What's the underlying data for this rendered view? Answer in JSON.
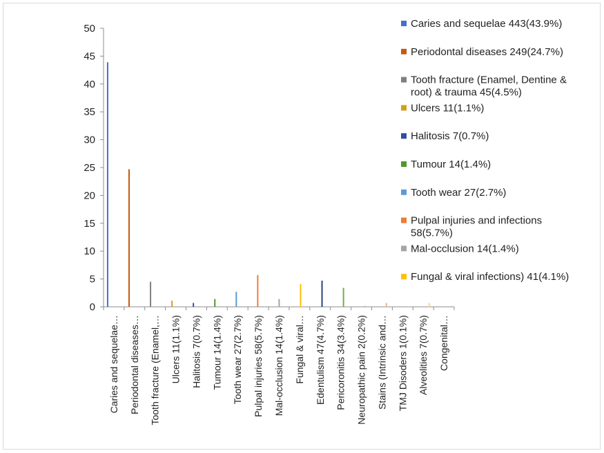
{
  "chart_data": {
    "type": "bar",
    "title": "",
    "xlabel": "",
    "ylabel": "",
    "ylim": [
      0,
      50
    ],
    "yticks": [
      "0",
      "5",
      "10",
      "15",
      "20",
      "25",
      "30",
      "35",
      "40",
      "45",
      "50"
    ],
    "legend_position": "right",
    "grid": false,
    "categories": [
      "Caries and sequelae…",
      "Periodontal diseases…",
      "Tooth fracture (Enamel,…",
      "Ulcers 11(1.1%)",
      "Halitosis 7(0.7%)",
      "Tumour 14(1.4%)",
      "Tooth wear 27(2.7%)",
      "Pulpal injuries 58(5.7%)",
      "Mal-occlusion 14(1.4%)",
      "Fungal & viral…",
      "Edentulism 47(4.7%)",
      "Pericoronitis 34(3.4%)",
      "Neuropathic pain 2(0.2%)",
      "Stains (Intrinsic and…",
      "TMJ Disoders 1(0.1%)",
      "Alveolities 7(0.7%)",
      "Congenital…"
    ],
    "series": [
      {
        "name": "Caries and sequelae 443(43.9%)",
        "color": "#4472c4",
        "category_index": 0,
        "value": 43.9
      },
      {
        "name": "Periodontal diseases 249(24.7%)",
        "color": "#c55a11",
        "category_index": 1,
        "value": 24.7
      },
      {
        "name": "Tooth fracture (Enamel, Dentine & root) & trauma 45(4.5%)",
        "color": "#7f7f7f",
        "category_index": 2,
        "value": 4.5
      },
      {
        "name": "Ulcers 11(1.1%)",
        "color": "#d4a017",
        "category_index": 3,
        "value": 1.1
      },
      {
        "name": "Halitosis 7(0.7%)",
        "color": "#2f4f9f",
        "category_index": 4,
        "value": 0.7
      },
      {
        "name": "Tumour 14(1.4%)",
        "color": "#4c9a2a",
        "category_index": 5,
        "value": 1.4
      },
      {
        "name": "Tooth wear 27(2.7%)",
        "color": "#5b9bd5",
        "category_index": 6,
        "value": 2.7
      },
      {
        "name": "Pulpal injuries and infections 58(5.7%)",
        "color": "#ed7d31",
        "category_index": 7,
        "value": 5.7
      },
      {
        "name": "Mal-occlusion 14(1.4%)",
        "color": "#a5a5a5",
        "category_index": 8,
        "value": 1.4
      },
      {
        "name": "Fungal & viral infections) 41(4.1%)",
        "color": "#ffc000",
        "category_index": 9,
        "value": 4.1
      },
      {
        "name": "",
        "color": "#264478",
        "category_index": 10,
        "value": 4.7
      },
      {
        "name": "",
        "color": "#70ad47",
        "category_index": 11,
        "value": 3.4
      },
      {
        "name": "",
        "color": "#9dc3e6",
        "category_index": 12,
        "value": 0.2
      },
      {
        "name": "",
        "color": "#f4b183",
        "category_index": 13,
        "value": 0.7
      },
      {
        "name": "",
        "color": "#c9c9c9",
        "category_index": 14,
        "value": 0.1
      },
      {
        "name": "",
        "color": "#ffd966",
        "category_index": 15,
        "value": 0.7
      },
      {
        "name": "",
        "color": "#8faadc",
        "category_index": 16,
        "value": 0.1
      }
    ]
  }
}
